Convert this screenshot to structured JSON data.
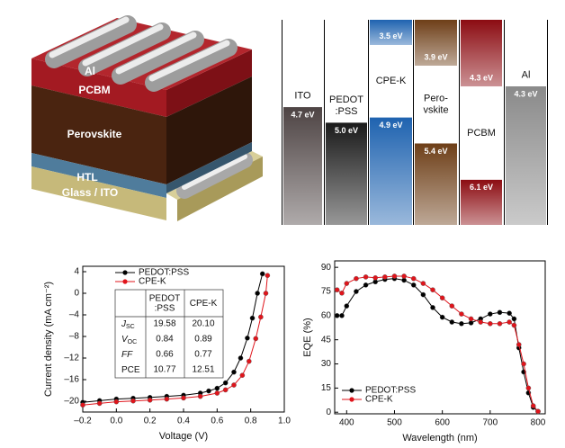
{
  "schematic": {
    "layers": [
      "Al",
      "PCBM",
      "Perovskite",
      "HTL",
      "Glass / ITO"
    ]
  },
  "energy_diagram": {
    "materials": [
      {
        "name": [
          "ITO"
        ],
        "levels": [
          4.7
        ],
        "level_labels": [
          "4.7 eV"
        ],
        "color": "#4e4444"
      },
      {
        "name": [
          "PEDOT",
          ":PSS"
        ],
        "levels": [
          5.0
        ],
        "level_labels": [
          "5.0 eV"
        ],
        "color": "#1a1a1a"
      },
      {
        "name": [
          "CPE-K"
        ],
        "levels": [
          3.5,
          4.9
        ],
        "level_labels": [
          "3.5 eV",
          "4.9 eV"
        ],
        "color": "#1f63b0"
      },
      {
        "name": [
          "Pero-",
          "vskite"
        ],
        "levels": [
          3.9,
          5.4
        ],
        "level_labels": [
          "3.9 eV",
          "5.4 eV"
        ],
        "color": "#6e3f18"
      },
      {
        "name": [
          "PCBM"
        ],
        "levels": [
          4.3,
          6.1
        ],
        "level_labels": [
          "4.3 eV",
          "6.1 eV"
        ],
        "color": "#8c0c12"
      },
      {
        "name": [
          "Al"
        ],
        "levels": [
          4.3
        ],
        "level_labels": [
          "4.3 eV"
        ],
        "color": "#8a8a8a"
      }
    ]
  },
  "chart_data": [
    {
      "type": "line",
      "xlabel": "Voltage (V)",
      "ylabel": "Current density (mA cm⁻²)",
      "xlim": [
        -0.2,
        1.0
      ],
      "ylim": [
        -22,
        5
      ],
      "xticks": [
        {
          "value": -0.2,
          "label": "–0.2"
        },
        {
          "value": 0,
          "label": "0.0"
        },
        0.2,
        0.4,
        0.6,
        0.8,
        {
          "value": 1.0,
          "label": "1.0"
        }
      ],
      "yticks": [
        4,
        0,
        {
          "value": -4,
          "label": "–4"
        },
        {
          "value": -8,
          "label": "–8"
        },
        {
          "value": -12,
          "label": "–12"
        },
        {
          "value": -16,
          "label": "–16"
        },
        {
          "value": -20,
          "label": "–20"
        }
      ],
      "legend": "upper left",
      "series": [
        {
          "name": "PEDOT:PSS",
          "color": "#000000",
          "x": [
            -0.2,
            -0.1,
            0,
            0.1,
            0.2,
            0.3,
            0.4,
            0.5,
            0.55,
            0.6,
            0.65,
            0.7,
            0.74,
            0.78,
            0.81,
            0.84,
            0.87
          ],
          "values": [
            -20.2,
            -19.9,
            -19.6,
            -19.45,
            -19.3,
            -19.1,
            -18.9,
            -18.5,
            -18.1,
            -17.6,
            -16.6,
            -14.6,
            -12.0,
            -8.3,
            -4.6,
            0,
            3.6
          ]
        },
        {
          "name": "CPE-K",
          "color": "#e0141b",
          "x": [
            -0.2,
            -0.1,
            0,
            0.1,
            0.2,
            0.3,
            0.4,
            0.5,
            0.6,
            0.65,
            0.7,
            0.75,
            0.79,
            0.83,
            0.86,
            0.89,
            0.9
          ],
          "values": [
            -20.7,
            -20.4,
            -20.1,
            -19.95,
            -19.8,
            -19.6,
            -19.4,
            -19.1,
            -18.5,
            -17.9,
            -17.0,
            -15.2,
            -12.6,
            -8.4,
            -4.4,
            0,
            3.3
          ]
        }
      ],
      "table": {
        "columns": [
          [
            "PEDOT",
            ":PSS"
          ],
          [
            "CPE-K"
          ]
        ],
        "rows": [
          {
            "label": "J",
            "sub": "SC",
            "values": [
              "19.58",
              "20.10"
            ]
          },
          {
            "label": "V",
            "sub": "OC",
            "values": [
              "0.84",
              "0.89"
            ]
          },
          {
            "label": "FF",
            "values": [
              "0.66",
              "0.77"
            ]
          },
          {
            "label": "PCE",
            "values": [
              "10.77",
              "12.51"
            ]
          }
        ]
      }
    },
    {
      "type": "line",
      "xlabel": "Wavelength (nm)",
      "ylabel": "EQE (%)",
      "xlim": [
        375,
        815
      ],
      "ylim": [
        -1,
        94
      ],
      "xticks": [
        400,
        500,
        600,
        700,
        800
      ],
      "yticks": [
        0,
        15,
        30,
        45,
        60,
        75,
        90
      ],
      "legend": "lower left",
      "x": [
        380,
        390,
        400,
        420,
        440,
        460,
        480,
        500,
        520,
        540,
        560,
        580,
        600,
        620,
        640,
        660,
        680,
        700,
        720,
        740,
        750,
        760,
        770,
        780,
        790,
        800
      ],
      "series": [
        {
          "name": "PEDOT:PSS",
          "color": "#000000",
          "values": [
            60,
            60,
            66,
            75,
            79,
            81,
            82.5,
            83,
            82,
            79,
            73,
            65,
            59,
            56,
            55,
            55.5,
            58,
            61,
            62,
            61.5,
            58,
            40,
            25,
            12,
            3,
            0.5
          ]
        },
        {
          "name": "CPE-K",
          "color": "#e0141b",
          "values": [
            76,
            74,
            80,
            83,
            84,
            83.5,
            84,
            84.5,
            84.5,
            83,
            80,
            76,
            71,
            66,
            61,
            58,
            56,
            55,
            55,
            56,
            54,
            42,
            30,
            15,
            4,
            0.5
          ]
        }
      ]
    }
  ]
}
